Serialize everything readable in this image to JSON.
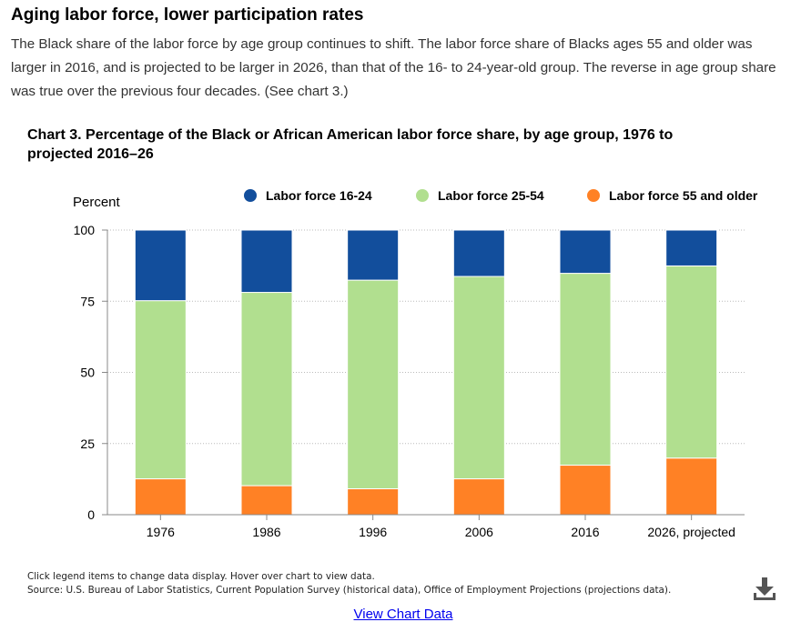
{
  "heading": "Aging labor force, lower participation rates",
  "intro": "The Black share of the labor force by age group continues to shift. The labor force share of Blacks ages 55 and older was larger in 2016, and is projected to be larger in 2026, than that of the 16- to 24-year-old group. The reverse in age group share was true over the previous four decades. (See chart 3.)",
  "footnote_line1": "Click legend items to change data display. Hover over chart to view data.",
  "footnote_line2": "Source: U.S. Bureau of Labor Statistics, Current Population Survey (historical data), Office of Employment Projections (projections data).",
  "view_chart_data_label": "View Chart Data",
  "download_icon": "download-icon",
  "chart_data": {
    "type": "bar",
    "stacked": true,
    "title": "Chart 3. Percentage of the Black or African American labor force share, by age group, 1976 to projected 2016–26",
    "ylabel": "Percent",
    "xlabel": "",
    "ylim": [
      0,
      100
    ],
    "yticks": [
      "0",
      "25",
      "50",
      "75",
      "100"
    ],
    "grid": true,
    "legend_position": "top",
    "categories": [
      "1976",
      "1986",
      "1996",
      "2006",
      "2016",
      "2026, projected"
    ],
    "series": [
      {
        "name": "Labor force 55 and older",
        "color": "#ff8125",
        "values": [
          12.6,
          10.2,
          9.1,
          12.6,
          17.4,
          19.9
        ]
      },
      {
        "name": "Labor force 25-54",
        "color": "#b1df8f",
        "values": [
          62.6,
          67.9,
          73.3,
          71.1,
          67.4,
          67.5
        ]
      },
      {
        "name": "Labor force 16-24",
        "color": "#124e9c",
        "values": [
          24.8,
          21.9,
          17.6,
          16.3,
          15.2,
          12.6
        ]
      }
    ],
    "legend_order": [
      "Labor force 16-24",
      "Labor force 25-54",
      "Labor force 55 and older"
    ]
  }
}
